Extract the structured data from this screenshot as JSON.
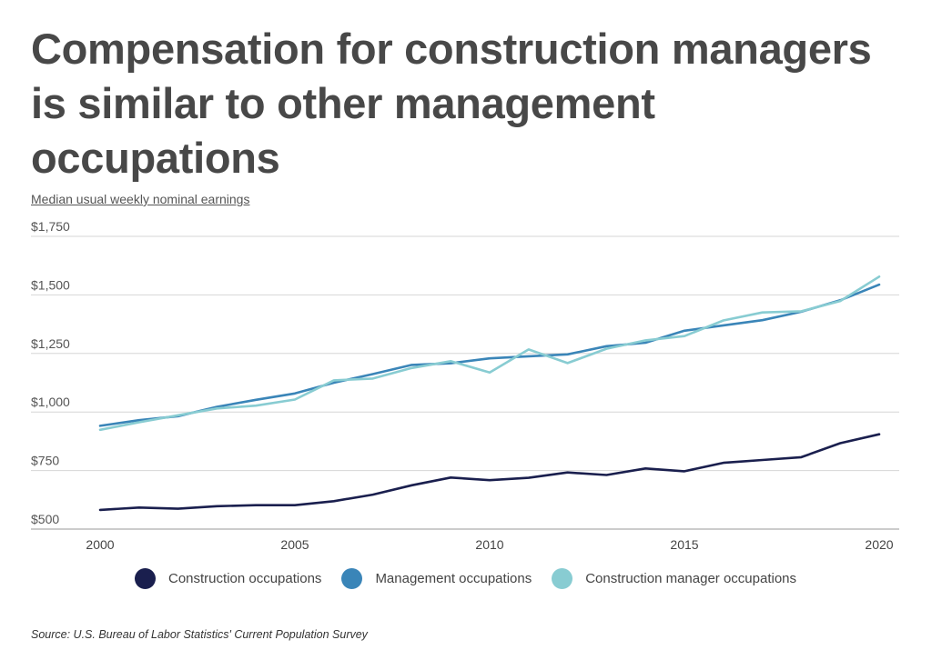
{
  "title": "Compensation for construction managers is similar to other management occupations",
  "source": "Source:  U.S. Bureau of Labor Statistics' Current Population Survey",
  "chart_data": {
    "type": "line",
    "title": "Compensation for construction managers is similar to other management occupations",
    "ylabel": "Median usual weekly nominal earnings",
    "xlabel": "",
    "x": [
      2000,
      2001,
      2002,
      2003,
      2004,
      2005,
      2006,
      2007,
      2008,
      2009,
      2010,
      2011,
      2012,
      2013,
      2014,
      2015,
      2016,
      2017,
      2018,
      2019,
      2020
    ],
    "xlim": [
      2000,
      2020
    ],
    "ylim": [
      500,
      1750
    ],
    "x_ticks": [
      2000,
      2005,
      2010,
      2015,
      2020
    ],
    "y_ticks": [
      500,
      750,
      1000,
      1250,
      1500,
      1750
    ],
    "y_tick_labels": [
      "$500",
      "$750",
      "$1,000",
      "$1,250",
      "$1,500",
      "$1,750"
    ],
    "grid": "horizontal",
    "legend_position": "bottom",
    "series": [
      {
        "name": "Construction occupations",
        "color": "#1a1f4e",
        "values": [
          582,
          592,
          587,
          598,
          602,
          602,
          619,
          647,
          687,
          720,
          709,
          719,
          742,
          731,
          759,
          747,
          783,
          795,
          807,
          867,
          905
        ]
      },
      {
        "name": "Management occupations",
        "color": "#3a85b8",
        "values": [
          941,
          965,
          982,
          1022,
          1052,
          1079,
          1125,
          1162,
          1201,
          1208,
          1229,
          1238,
          1246,
          1281,
          1296,
          1347,
          1370,
          1392,
          1428,
          1477,
          1544
        ]
      },
      {
        "name": "Construction manager occupations",
        "color": "#88ccd2",
        "values": [
          924,
          956,
          986,
          1015,
          1027,
          1053,
          1135,
          1143,
          1188,
          1217,
          1169,
          1267,
          1209,
          1270,
          1306,
          1324,
          1391,
          1425,
          1430,
          1474,
          1578
        ]
      }
    ]
  }
}
